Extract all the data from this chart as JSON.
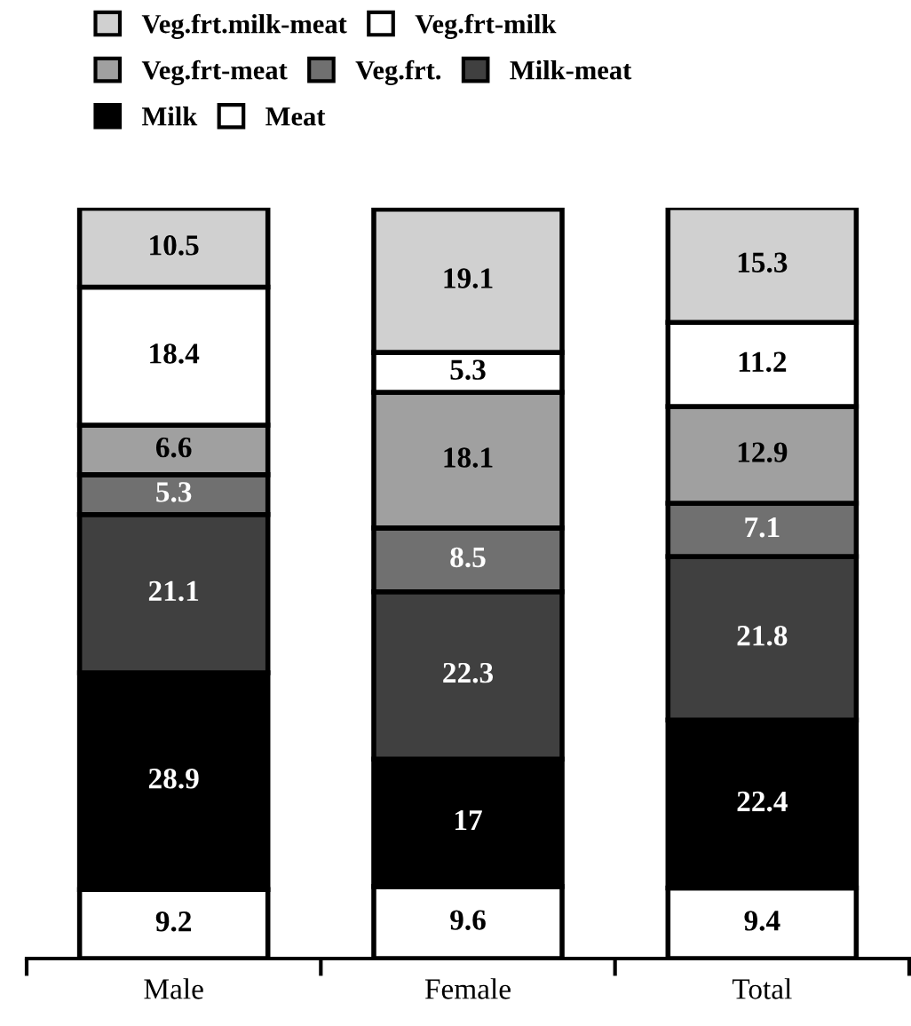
{
  "chart_data": {
    "type": "bar",
    "stacked": true,
    "data_labels": true,
    "legend": "top",
    "categories": [
      "Male",
      "Female",
      "Total"
    ],
    "series": [
      {
        "name": "Meat",
        "color": "#ffffff",
        "values": [
          9.2,
          9.6,
          9.4
        ]
      },
      {
        "name": "Milk",
        "color": "#000000",
        "values": [
          28.9,
          17,
          22.4
        ]
      },
      {
        "name": "Milk-meat",
        "color": "#404040",
        "values": [
          21.1,
          22.3,
          21.8
        ]
      },
      {
        "name": "Veg.frt.",
        "color": "#707070",
        "values": [
          5.3,
          8.5,
          7.1
        ]
      },
      {
        "name": "Veg.frt-meat",
        "color": "#a0a0a0",
        "values": [
          6.6,
          18.1,
          12.9
        ]
      },
      {
        "name": "Veg.frt-milk",
        "color": "#ffffff",
        "values": [
          18.4,
          5.3,
          11.2
        ]
      },
      {
        "name": "Veg.frt.milk-meat",
        "color": "#d0d0d0",
        "values": [
          10.5,
          19.1,
          15.3
        ]
      }
    ]
  }
}
